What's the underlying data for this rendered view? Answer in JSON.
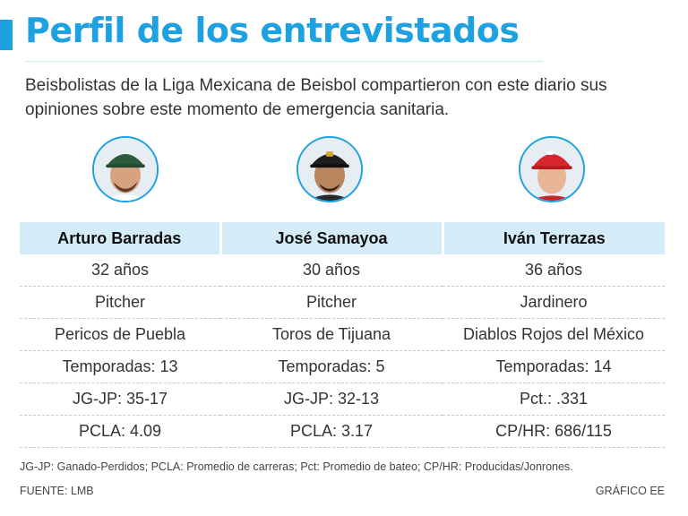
{
  "header": {
    "title": "Perfil de los entrevistados",
    "intro": "Beisbolistas de la Liga Mexicana de Beisbol compartieron con este diario sus opiniones sobre este momento de emergencia sanitaria.",
    "accent_color": "#1da1e0"
  },
  "players": [
    {
      "name": "Arturo Barradas",
      "age": "32 años",
      "position": "Pitcher",
      "team": "Pericos de Puebla",
      "seasons": "Temporadas: 13",
      "stat1": "JG-JP: 35-17",
      "stat2": "PCLA: 4.09",
      "photo_icon": "player-photo-icon"
    },
    {
      "name": "José Samayoa",
      "age": "30 años",
      "position": "Pitcher",
      "team": "Toros de Tijuana",
      "seasons": "Temporadas: 5",
      "stat1": "JG-JP: 32-13",
      "stat2": "PCLA: 3.17",
      "photo_icon": "player-photo-icon"
    },
    {
      "name": "Iván Terrazas",
      "age": "36 años",
      "position": "Jardinero",
      "team": "Diablos Rojos del México",
      "seasons": "Temporadas: 14",
      "stat1": "Pct.: .331",
      "stat2": "CP/HR: 686/115",
      "photo_icon": "player-photo-icon"
    }
  ],
  "footer": {
    "footnote": "JG-JP: Ganado-Perdidos; PCLA: Promedio de carreras; Pct: Promedio de bateo; CP/HR: Producidas/Jonrones.",
    "source": "FUENTE: LMB",
    "credit": "GRÁFICO EE"
  }
}
